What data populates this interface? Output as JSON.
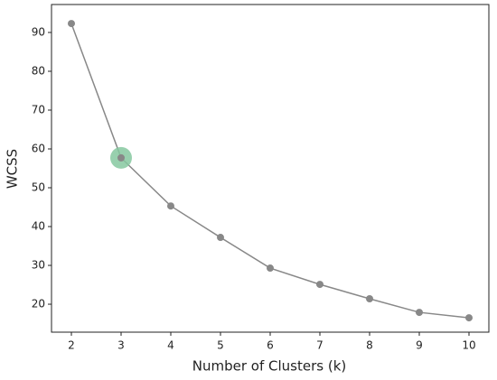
{
  "chart_data": {
    "type": "line",
    "xlabel": "Number of Clusters (k)",
    "ylabel": "WCSS",
    "x": [
      2,
      3,
      4,
      5,
      6,
      7,
      8,
      9,
      10
    ],
    "series": [
      {
        "color": "#888888",
        "values": [
          92.3,
          57.7,
          45.3,
          37.2,
          29.3,
          25.1,
          21.4,
          17.9,
          16.5
        ]
      }
    ],
    "xlim": [
      1.6,
      10.4
    ],
    "xticks": [
      2,
      3,
      4,
      5,
      6,
      7,
      8,
      9,
      10
    ],
    "ylim": [
      12.8,
      97.2
    ],
    "yticks": [
      20,
      30,
      40,
      50,
      60,
      70,
      80,
      90
    ],
    "grid": false,
    "highlight": {
      "index": 1,
      "color": "#86c8a0"
    }
  }
}
